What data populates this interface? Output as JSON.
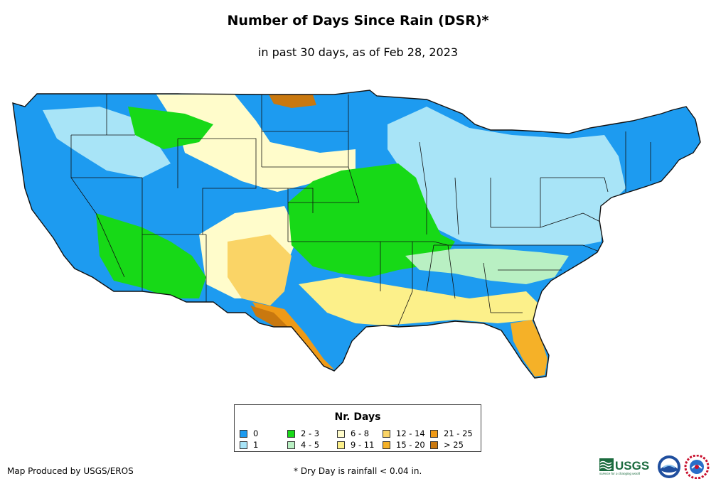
{
  "title": "Number of Days Since Rain (DSR)*",
  "subtitle": "in past 30 days, as of Feb 28, 2023",
  "legend": {
    "title": "Nr. Days",
    "items": [
      {
        "label": "0",
        "color": "#1d9bf0"
      },
      {
        "label": "1",
        "color": "#a8e4f7"
      },
      {
        "label": "2 - 3",
        "color": "#17d917"
      },
      {
        "label": "4 - 5",
        "color": "#b9f0c3"
      },
      {
        "label": "6 - 8",
        "color": "#fffccb"
      },
      {
        "label": "9 - 11",
        "color": "#fcf08a"
      },
      {
        "label": "12 - 14",
        "color": "#fad466"
      },
      {
        "label": "15 - 20",
        "color": "#f5b128"
      },
      {
        "label": "21 - 25",
        "color": "#ef9a17"
      },
      {
        "label": "> 25",
        "color": "#c9780f"
      }
    ]
  },
  "credit": "Map Produced by USGS/EROS",
  "footnote": "* Dry Day is rainfall < 0.04 in.",
  "logos": {
    "usgs": "USGS",
    "usgs_tagline": "science for a changing world"
  }
}
